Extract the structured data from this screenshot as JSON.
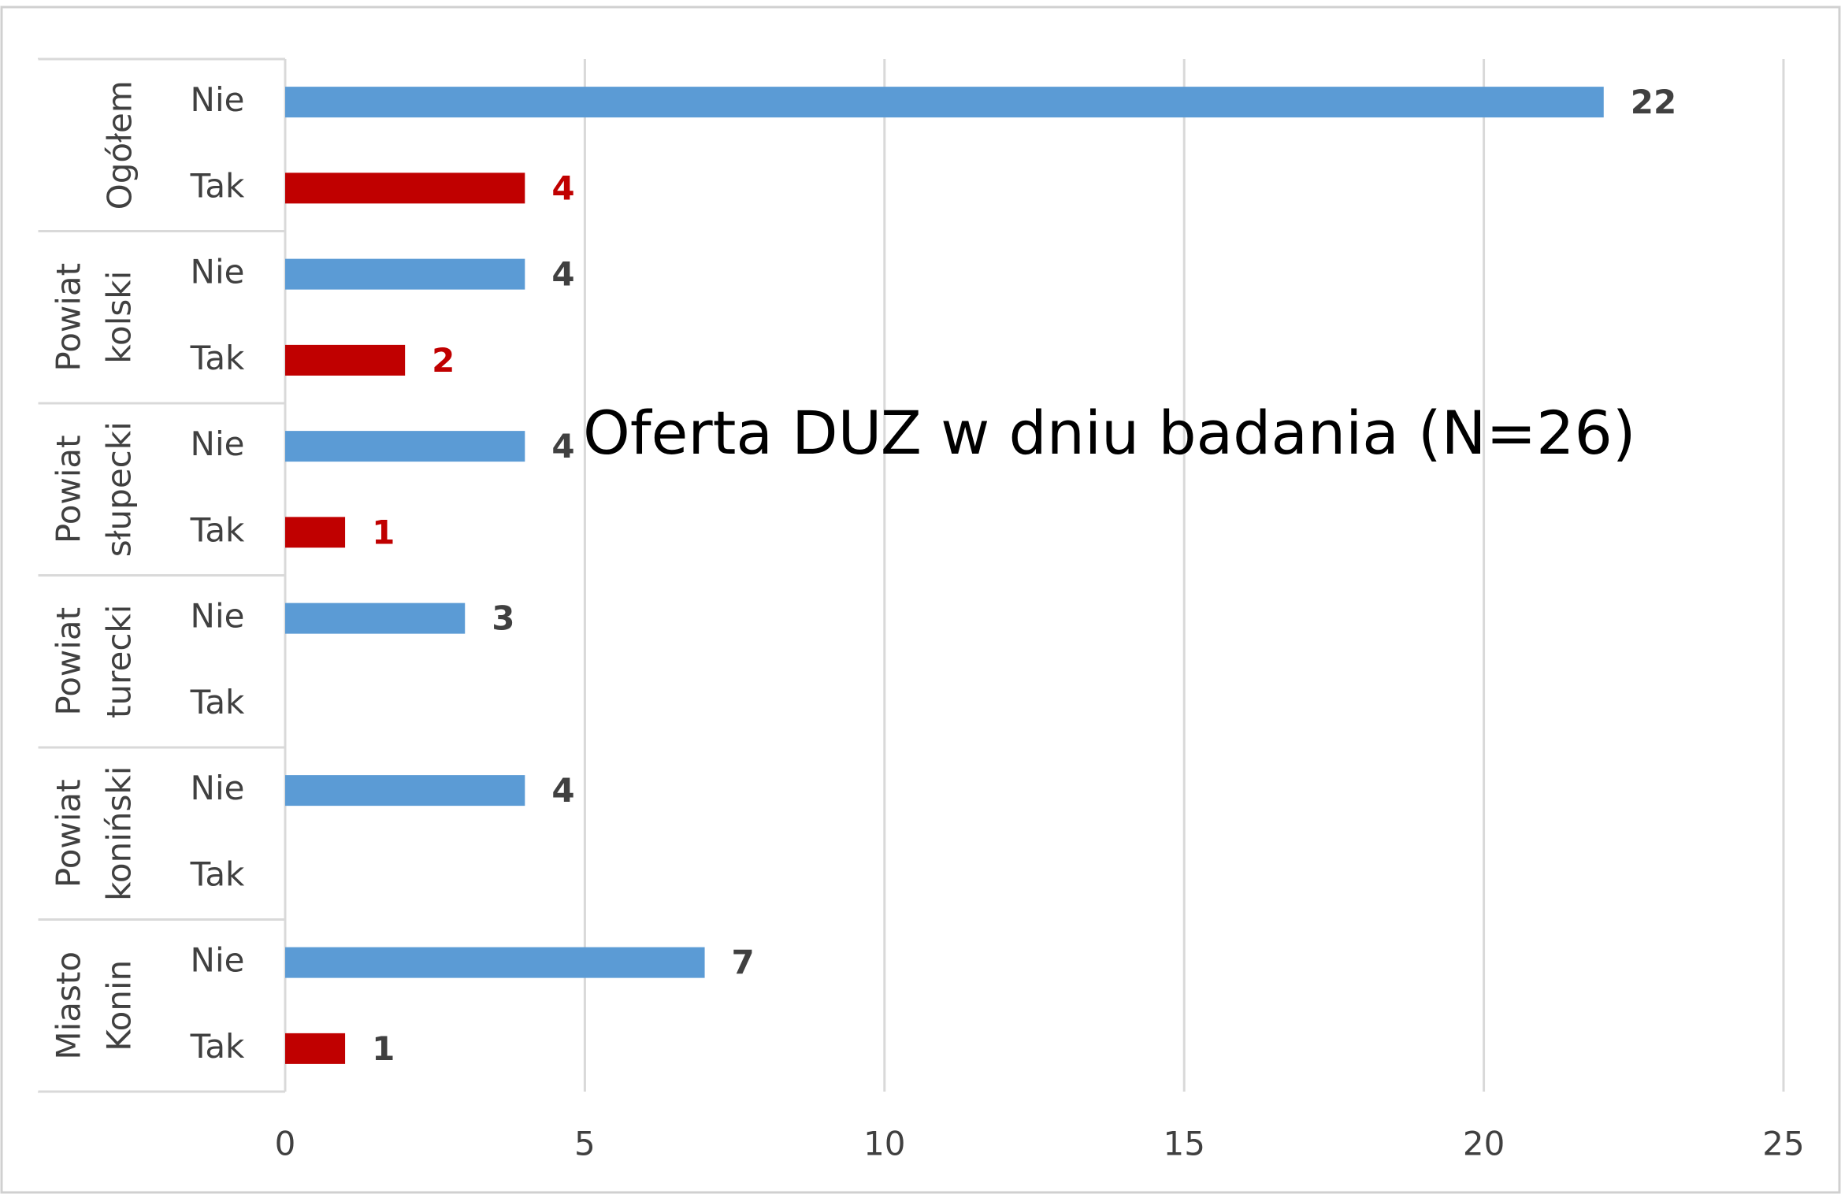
{
  "chart_data": {
    "type": "bar",
    "orientation": "horizontal",
    "title": "Oferta DUZ w dniu badania (N=26)",
    "groups": [
      [
        "Ogółem"
      ],
      [
        "Powiat",
        "kolski"
      ],
      [
        "Powiat",
        "słupecki"
      ],
      [
        "Powiat",
        "turecki"
      ],
      [
        "Powiat",
        "koniński"
      ],
      [
        "Miasto",
        "Konin"
      ]
    ],
    "categories": [
      "Nie",
      "Tak",
      "Nie",
      "Tak",
      "Nie",
      "Tak",
      "Nie",
      "Tak",
      "Nie",
      "Tak",
      "Nie",
      "Tak"
    ],
    "values": [
      22,
      4,
      4,
      2,
      4,
      1,
      3,
      null,
      4,
      null,
      7,
      1
    ],
    "colors": [
      "#5b9bd5",
      "#c00000",
      "#5b9bd5",
      "#c00000",
      "#5b9bd5",
      "#c00000",
      "#5b9bd5",
      "#c00000",
      "#5b9bd5",
      "#c00000",
      "#5b9bd5",
      "#c00000"
    ],
    "label_colors": [
      "#404040",
      "#c00000",
      "#404040",
      "#c00000",
      "#404040",
      "#c00000",
      "#404040",
      "#c00000",
      "#404040",
      "#c00000",
      "#404040",
      "#404040"
    ],
    "xlim": [
      0,
      25
    ],
    "xticks": [
      0,
      5,
      10,
      15,
      20,
      25
    ],
    "grid": true
  }
}
